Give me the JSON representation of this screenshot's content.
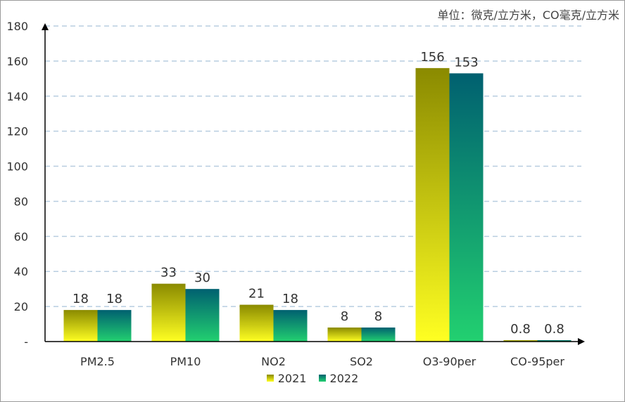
{
  "unit_label": "单位：微克/立方米，CO毫克/立方米",
  "chart_data": {
    "type": "bar",
    "categories": [
      "PM2.5",
      "PM10",
      "NO2",
      "SO2",
      "O3-90per",
      "CO-95per"
    ],
    "series": [
      {
        "name": "2021",
        "values": [
          18,
          33,
          21,
          8,
          156,
          0.8
        ],
        "labels": [
          "18",
          "33",
          "21",
          "8",
          "156",
          "0.8"
        ]
      },
      {
        "name": "2022",
        "values": [
          18,
          30,
          18,
          8,
          153,
          0.8
        ],
        "labels": [
          "18",
          "30",
          "18",
          "8",
          "153",
          "0.8"
        ]
      }
    ],
    "ylim": [
      0,
      180
    ],
    "yticks": [
      "-",
      "20",
      "40",
      "60",
      "80",
      "100",
      "120",
      "140",
      "160",
      "180"
    ],
    "grid": true,
    "legend_position": "bottom",
    "colors": {
      "2021_top": "#8a8a00",
      "2021_bottom": "#ffff22",
      "2022_top": "#006070",
      "2022_bottom": "#22d070",
      "grid": "#b8cde0",
      "axis": "#000000"
    }
  }
}
